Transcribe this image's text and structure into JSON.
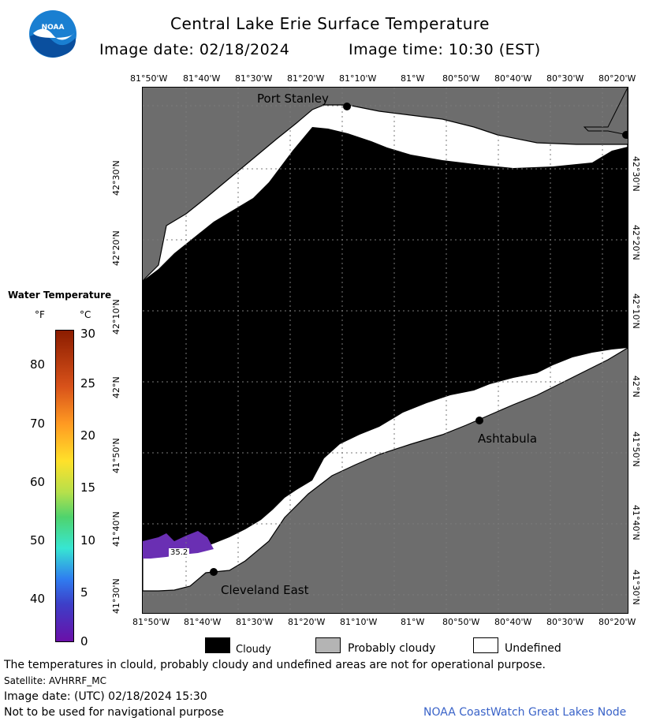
{
  "header": {
    "title": "Central Lake Erie Surface Temperature",
    "image_date": "Image date: 02/18/2024",
    "image_time": "Image time: 10:30 (EST)"
  },
  "logo": {
    "text": "NOAA",
    "icon": "noaa-logo"
  },
  "map": {
    "lon_labels": [
      "81°50'W",
      "81°40'W",
      "81°30'W",
      "81°20'W",
      "81°10'W",
      "81°W",
      "80°50'W",
      "80°40'W",
      "80°30'W",
      "80°20'W"
    ],
    "lat_labels": [
      "42°30'N",
      "42°20'N",
      "42°10'N",
      "42°N",
      "41°50'N",
      "41°40'N",
      "41°30'N"
    ],
    "places": [
      "Port Stanley",
      "Ashtabula",
      "Cleveland East"
    ],
    "value_label": "35.2",
    "colors": {
      "land": "#6d6d6d",
      "cloud": "#000000",
      "undefined": "#ffffff",
      "cold_water": "#6a2fb3"
    }
  },
  "legend": {
    "title": "Water Temperature",
    "unit_f": "°F",
    "unit_c": "°C",
    "f_ticks": [
      "80",
      "70",
      "60",
      "50",
      "40"
    ],
    "c_ticks": [
      "30",
      "25",
      "20",
      "15",
      "10",
      "5",
      "0"
    ]
  },
  "key": {
    "items": [
      {
        "label": "Cloudy",
        "color": "#000000"
      },
      {
        "label": "Probably cloudy",
        "color": "#b4b4b4"
      },
      {
        "label": "Undefined",
        "color": "#ffffff"
      }
    ]
  },
  "footer": {
    "disclaimer": "The temperatures in clould, probably cloudy and undefined areas are not for operational purpose.",
    "satellite": "Satellite: AVHRRF_MC",
    "utc_date": "Image date: (UTC) 02/18/2024  15:30",
    "nav_warning": "Not to be used for navigational purpose",
    "credit": "NOAA CoastWatch Great Lakes Node"
  }
}
